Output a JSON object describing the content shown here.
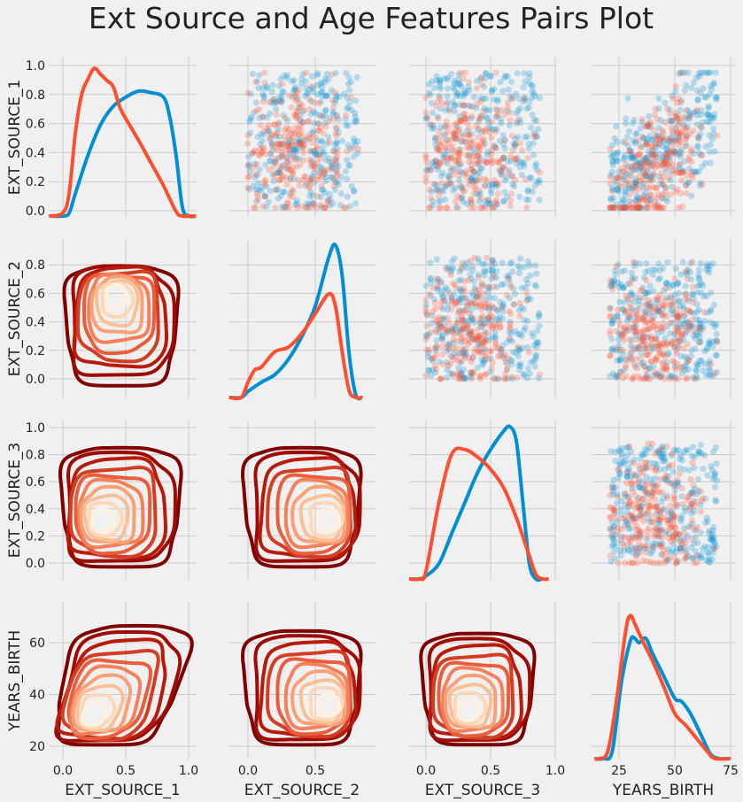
{
  "chart_data": {
    "type": "pairplot",
    "title": "Ext Source and Age Features Pairs Plot",
    "variables": [
      "EXT_SOURCE_1",
      "EXT_SOURCE_2",
      "EXT_SOURCE_3",
      "YEARS_BIRTH"
    ],
    "colors": {
      "class_0": "#008fd5",
      "class_1": "#fc4f30",
      "grid": "#cbcbcb",
      "background": "#f0f0f0"
    },
    "contour_colors": [
      "#7f0000",
      "#9e0a04",
      "#b81b0b",
      "#d43d24",
      "#e85d3c",
      "#f4805a",
      "#f9a077",
      "#fbbf96",
      "#fdd7b6",
      "#fff0e0"
    ],
    "x_ticks": [
      {
        "values": [
          0,
          0.5,
          1.0
        ],
        "labels": [
          "0.0",
          "0.5",
          "1.0"
        ]
      },
      {
        "values": [
          0,
          0.5
        ],
        "labels": [
          "0.0",
          "0.5"
        ]
      },
      {
        "values": [
          0,
          0.5,
          1.0
        ],
        "labels": [
          "0.0",
          "0.5",
          "1.0"
        ]
      },
      {
        "values": [
          25,
          50,
          75
        ],
        "labels": [
          "25",
          "50",
          "75"
        ]
      }
    ],
    "y_ticks": [
      {
        "values": [
          0,
          0.2,
          0.4,
          0.6,
          0.8,
          1.0
        ],
        "labels": [
          "0.0",
          "0.2",
          "0.4",
          "0.6",
          "0.8",
          "1.0"
        ]
      },
      {
        "values": [
          0,
          0.2,
          0.4,
          0.6,
          0.8
        ],
        "labels": [
          "0.0",
          "0.2",
          "0.4",
          "0.6",
          "0.8"
        ]
      },
      {
        "values": [
          0,
          0.2,
          0.4,
          0.6,
          0.8,
          1.0
        ],
        "labels": [
          "0.0",
          "0.2",
          "0.4",
          "0.6",
          "0.8",
          "1.0"
        ]
      },
      {
        "values": [
          20,
          40,
          60
        ],
        "labels": [
          "20",
          "40",
          "60"
        ]
      }
    ],
    "diagonal_kde": [
      {
        "variable": "EXT_SOURCE_1",
        "class_0": {
          "x": [
            -0.11,
            0.0,
            0.05,
            0.1,
            0.2,
            0.3,
            0.4,
            0.5,
            0.6,
            0.7,
            0.8,
            0.85,
            0.9,
            0.95,
            1.0,
            1.06
          ],
          "density": [
            0,
            0,
            0.02,
            0.15,
            0.4,
            0.6,
            0.72,
            0.78,
            0.82,
            0.81,
            0.78,
            0.65,
            0.4,
            0.06,
            0,
            0
          ]
        },
        "class_1": {
          "x": [
            -0.11,
            0.0,
            0.05,
            0.1,
            0.15,
            0.2,
            0.25,
            0.3,
            0.35,
            0.4,
            0.45,
            0.5,
            0.6,
            0.7,
            0.8,
            0.9,
            0.95,
            1.06
          ],
          "density": [
            0,
            0.02,
            0.15,
            0.55,
            0.8,
            0.9,
            0.97,
            0.93,
            0.89,
            0.85,
            0.72,
            0.64,
            0.5,
            0.35,
            0.2,
            0.03,
            0,
            0
          ]
        }
      },
      {
        "variable": "EXT_SOURCE_2",
        "class_0": {
          "x": [
            -0.14,
            -0.05,
            0.0,
            0.1,
            0.2,
            0.3,
            0.4,
            0.5,
            0.6,
            0.65,
            0.7,
            0.75,
            0.8,
            0.85
          ],
          "density": [
            0,
            0,
            0.04,
            0.1,
            0.15,
            0.25,
            0.4,
            0.6,
            0.92,
            1.0,
            0.8,
            0.3,
            0.02,
            0
          ]
        },
        "class_1": {
          "x": [
            -0.14,
            -0.05,
            0.0,
            0.05,
            0.1,
            0.2,
            0.3,
            0.4,
            0.5,
            0.6,
            0.65,
            0.7,
            0.75,
            0.8,
            0.85
          ],
          "density": [
            0,
            0,
            0.1,
            0.18,
            0.2,
            0.3,
            0.33,
            0.42,
            0.55,
            0.68,
            0.6,
            0.3,
            0.05,
            0,
            0
          ]
        }
      },
      {
        "variable": "EXT_SOURCE_3",
        "class_0": {
          "x": [
            -0.13,
            -0.05,
            0.0,
            0.1,
            0.2,
            0.3,
            0.4,
            0.5,
            0.6,
            0.65,
            0.7,
            0.75,
            0.8,
            0.85,
            0.9
          ],
          "density": [
            0,
            0,
            0.02,
            0.1,
            0.3,
            0.5,
            0.7,
            0.85,
            0.97,
            1.0,
            0.9,
            0.5,
            0.1,
            0,
            0
          ]
        },
        "class_1": {
          "x": [
            -0.13,
            -0.05,
            0.0,
            0.1,
            0.2,
            0.3,
            0.4,
            0.5,
            0.6,
            0.7,
            0.8,
            0.85,
            0.9,
            0.95
          ],
          "density": [
            0,
            0,
            0.05,
            0.5,
            0.82,
            0.85,
            0.8,
            0.72,
            0.6,
            0.4,
            0.15,
            0.03,
            0,
            0
          ]
        }
      },
      {
        "variable": "YEARS_BIRTH",
        "class_0": {
          "x": [
            14,
            18,
            22,
            26,
            30,
            32,
            34,
            37,
            40,
            45,
            50,
            53,
            57,
            62,
            66,
            70,
            75
          ],
          "density": [
            0,
            0,
            0.05,
            0.5,
            0.78,
            0.8,
            0.77,
            0.8,
            0.7,
            0.55,
            0.4,
            0.38,
            0.3,
            0.15,
            0.03,
            0,
            0
          ]
        },
        "class_1": {
          "x": [
            14,
            16,
            20,
            24,
            28,
            30,
            32,
            35,
            40,
            45,
            50,
            55,
            60,
            65,
            68,
            75
          ],
          "density": [
            0,
            0,
            0.05,
            0.4,
            0.85,
            0.95,
            0.9,
            0.8,
            0.65,
            0.48,
            0.3,
            0.22,
            0.13,
            0.04,
            0,
            0
          ]
        }
      }
    ],
    "scatter_panels": [
      {
        "x": "EXT_SOURCE_2",
        "y": "EXT_SOURCE_1",
        "xrange": [
          0.0,
          0.82
        ],
        "yrange": [
          0.02,
          0.95
        ],
        "corr": 0
      },
      {
        "x": "EXT_SOURCE_3",
        "y": "EXT_SOURCE_1",
        "xrange": [
          0.0,
          0.88
        ],
        "yrange": [
          0.02,
          0.95
        ],
        "corr": 0
      },
      {
        "x": "YEARS_BIRTH",
        "y": "EXT_SOURCE_1",
        "xrange": [
          21,
          69
        ],
        "yrange": [
          0.02,
          0.95
        ],
        "corr": 0.6
      },
      {
        "x": "EXT_SOURCE_3",
        "y": "EXT_SOURCE_2",
        "xrange": [
          0.0,
          0.88
        ],
        "yrange": [
          0.0,
          0.85
        ],
        "corr": 0
      },
      {
        "x": "YEARS_BIRTH",
        "y": "EXT_SOURCE_2",
        "xrange": [
          21,
          69
        ],
        "yrange": [
          0.0,
          0.82
        ],
        "corr": 0
      },
      {
        "x": "YEARS_BIRTH",
        "y": "EXT_SOURCE_3",
        "xrange": [
          21,
          69
        ],
        "yrange": [
          0.0,
          0.88
        ],
        "corr": 0
      }
    ],
    "scatter_alpha": 0.25,
    "kde_contour_panels": [
      {
        "x": "EXT_SOURCE_1",
        "y": "EXT_SOURCE_2",
        "xrange": [
          0.03,
          0.9
        ],
        "yrange": [
          -0.04,
          0.8
        ],
        "core": [
          0.42,
          0.6
        ],
        "levels": 10
      },
      {
        "x": "EXT_SOURCE_1",
        "y": "EXT_SOURCE_3",
        "xrange": [
          0.0,
          0.92
        ],
        "yrange": [
          -0.02,
          0.86
        ],
        "core": [
          0.3,
          0.3
        ],
        "levels": 10
      },
      {
        "x": "EXT_SOURCE_2",
        "y": "EXT_SOURCE_3",
        "xrange": [
          -0.02,
          0.82
        ],
        "yrange": [
          -0.02,
          0.86
        ],
        "core": [
          0.62,
          0.3
        ],
        "levels": 10
      },
      {
        "x": "EXT_SOURCE_1",
        "y": "YEARS_BIRTH",
        "xrange": [
          0.0,
          0.92
        ],
        "yrange": [
          21,
          67
        ],
        "core": [
          0.28,
          31
        ],
        "levels": 10,
        "tilt": 0.6
      },
      {
        "x": "EXT_SOURCE_2",
        "y": "YEARS_BIRTH",
        "xrange": [
          -0.02,
          0.82
        ],
        "yrange": [
          21,
          65
        ],
        "core": [
          0.62,
          35
        ],
        "levels": 10
      },
      {
        "x": "EXT_SOURCE_3",
        "y": "YEARS_BIRTH",
        "xrange": [
          -0.02,
          0.82
        ],
        "yrange": [
          21,
          64
        ],
        "core": [
          0.32,
          33
        ],
        "levels": 10
      }
    ]
  }
}
